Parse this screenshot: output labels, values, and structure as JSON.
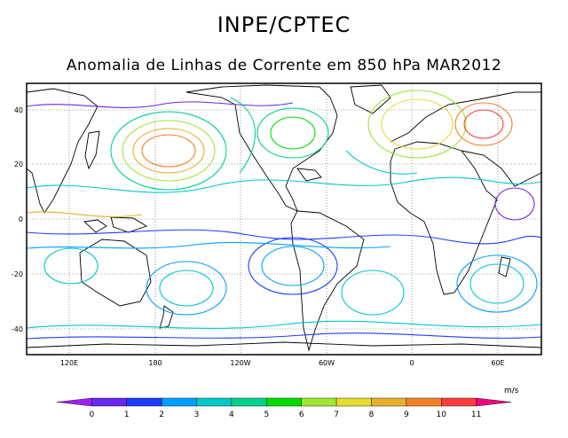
{
  "header": {
    "title": "INPE/CPTEC",
    "subtitle": "Anomalia de Linhas de Corrente em 850 hPa MAR2012"
  },
  "map": {
    "lat_ticks": [
      "40",
      "20",
      "0",
      "-20",
      "-40"
    ],
    "lon_ticks": [
      "120E",
      "180",
      "120W",
      "60W",
      "0",
      "60E"
    ],
    "lon_range": [
      90,
      450
    ],
    "lat_range": [
      -50,
      50
    ]
  },
  "colorbar": {
    "unit": "m/s",
    "levels": [
      "0",
      "1",
      "2",
      "3",
      "4",
      "5",
      "6",
      "7",
      "8",
      "9",
      "10",
      "11"
    ],
    "colors": [
      "#a020f0",
      "#6a28f0",
      "#1e3cff",
      "#00a0ff",
      "#00c8c8",
      "#00d28c",
      "#00dc00",
      "#a0e632",
      "#e6dc32",
      "#e6af2d",
      "#f08228",
      "#fa3c3c",
      "#f00082"
    ]
  }
}
